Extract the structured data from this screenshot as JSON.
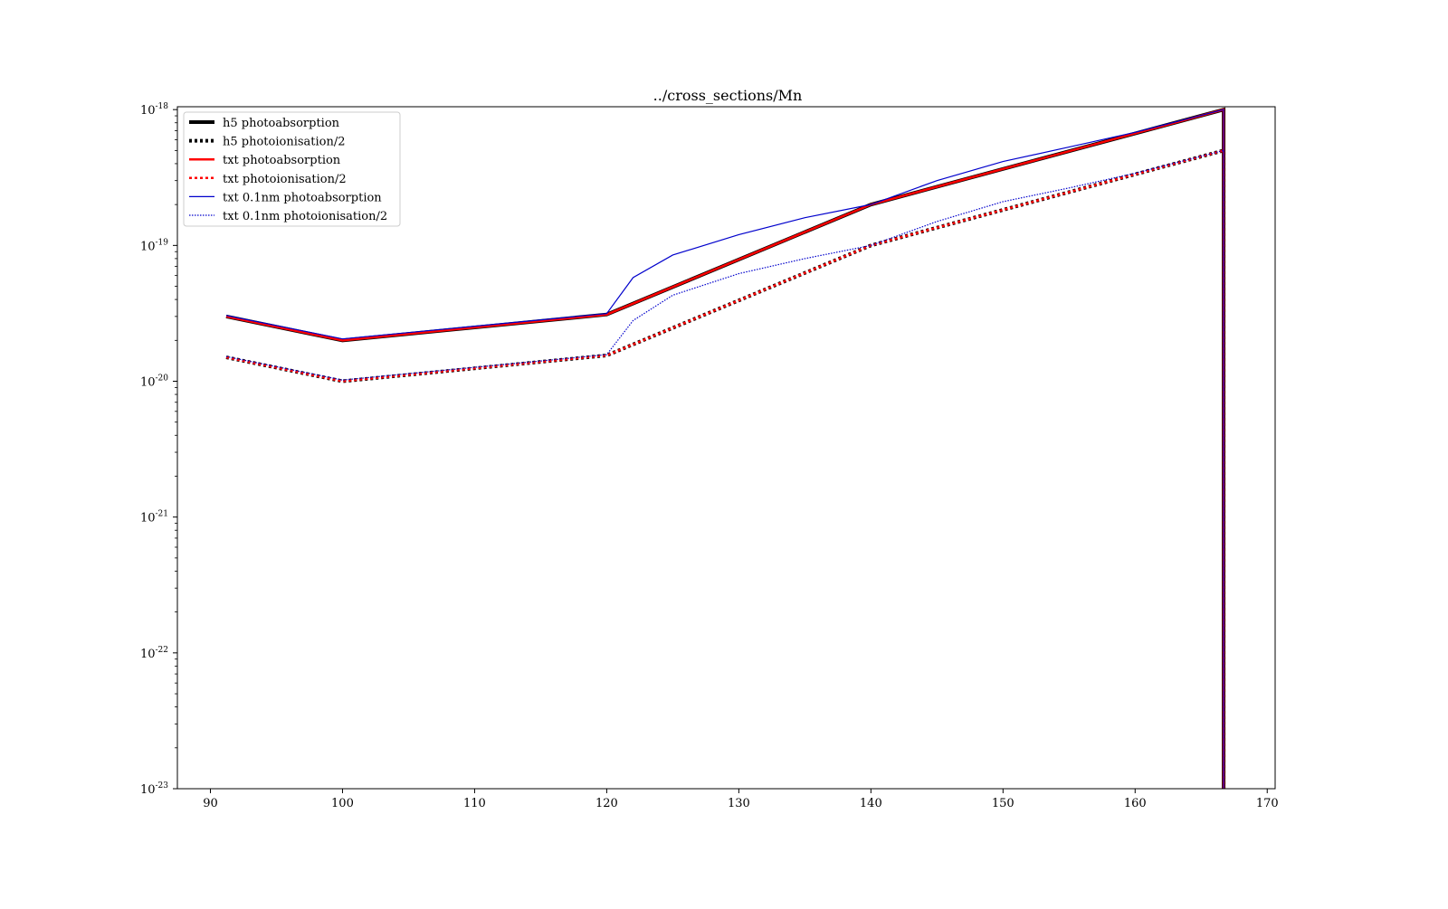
{
  "chart_data": {
    "type": "line",
    "title": "../cross_sections/Mn",
    "xlabel": "",
    "ylabel": "",
    "xlim": [
      87.5,
      170.6
    ],
    "ylim": [
      1e-23,
      1.05e-18
    ],
    "yscale": "log",
    "grid": false,
    "legend_position": "top-left",
    "x_ticks": [
      90,
      100,
      110,
      120,
      130,
      140,
      150,
      160,
      170
    ],
    "y_ticks": [
      {
        "value": 1e-23,
        "base": "10",
        "exp": "-23"
      },
      {
        "value": 1e-22,
        "base": "10",
        "exp": "-22"
      },
      {
        "value": 1e-21,
        "base": "10",
        "exp": "-21"
      },
      {
        "value": 1e-20,
        "base": "10",
        "exp": "-20"
      },
      {
        "value": 1e-19,
        "base": "10",
        "exp": "-19"
      },
      {
        "value": 1e-18,
        "base": "10",
        "exp": "-18"
      }
    ],
    "series": [
      {
        "name": "h5 photoabsorption",
        "color": "#000000",
        "style": "solid",
        "width": 4,
        "x": [
          91.2,
          100,
          120,
          140,
          166.7,
          166.7
        ],
        "y": [
          3e-20,
          2e-20,
          3.1e-20,
          2e-19,
          1e-18,
          1e-23
        ]
      },
      {
        "name": "h5 photoionisation/2",
        "color": "#000000",
        "style": "dotted",
        "width": 4,
        "x": [
          91.2,
          100,
          120,
          140,
          166.7,
          166.7
        ],
        "y": [
          1.5e-20,
          1e-20,
          1.55e-20,
          1e-19,
          5e-19,
          1e-23
        ]
      },
      {
        "name": "txt photoabsorption",
        "color": "#ff0000",
        "style": "solid",
        "width": 2.5,
        "x": [
          91.2,
          100,
          120,
          140,
          166.7,
          166.7
        ],
        "y": [
          3e-20,
          2e-20,
          3.1e-20,
          2e-19,
          1e-18,
          1e-23
        ]
      },
      {
        "name": "txt photoionisation/2",
        "color": "#ff0000",
        "style": "dotted",
        "width": 2.5,
        "x": [
          91.2,
          100,
          120,
          140,
          166.7,
          166.7
        ],
        "y": [
          1.5e-20,
          1e-20,
          1.55e-20,
          1e-19,
          5e-19,
          1e-23
        ]
      },
      {
        "name": "txt 0.1nm photoabsorption",
        "color": "#0000cc",
        "style": "solid",
        "width": 1.2,
        "x": [
          91.2,
          100,
          120,
          122,
          125,
          130,
          135,
          140,
          145,
          150,
          155,
          160,
          166.7,
          166.7
        ],
        "y": [
          3.05e-20,
          2.05e-20,
          3.15e-20,
          5.8e-20,
          8.5e-20,
          1.2e-19,
          1.6e-19,
          2e-19,
          3e-19,
          4.15e-19,
          5.3e-19,
          6.8e-19,
          1e-18,
          1e-23
        ]
      },
      {
        "name": "txt 0.1nm photoionisation/2",
        "color": "#0000cc",
        "style": "dotted",
        "width": 1.2,
        "x": [
          91.2,
          100,
          120,
          122,
          125,
          130,
          135,
          140,
          145,
          150,
          155,
          160,
          166.7,
          166.7
        ],
        "y": [
          1.52e-20,
          1.02e-20,
          1.57e-20,
          2.8e-20,
          4.3e-20,
          6.2e-20,
          8e-20,
          1e-19,
          1.5e-19,
          2.1e-19,
          2.65e-19,
          3.4e-19,
          5e-19,
          1e-23
        ]
      }
    ]
  }
}
